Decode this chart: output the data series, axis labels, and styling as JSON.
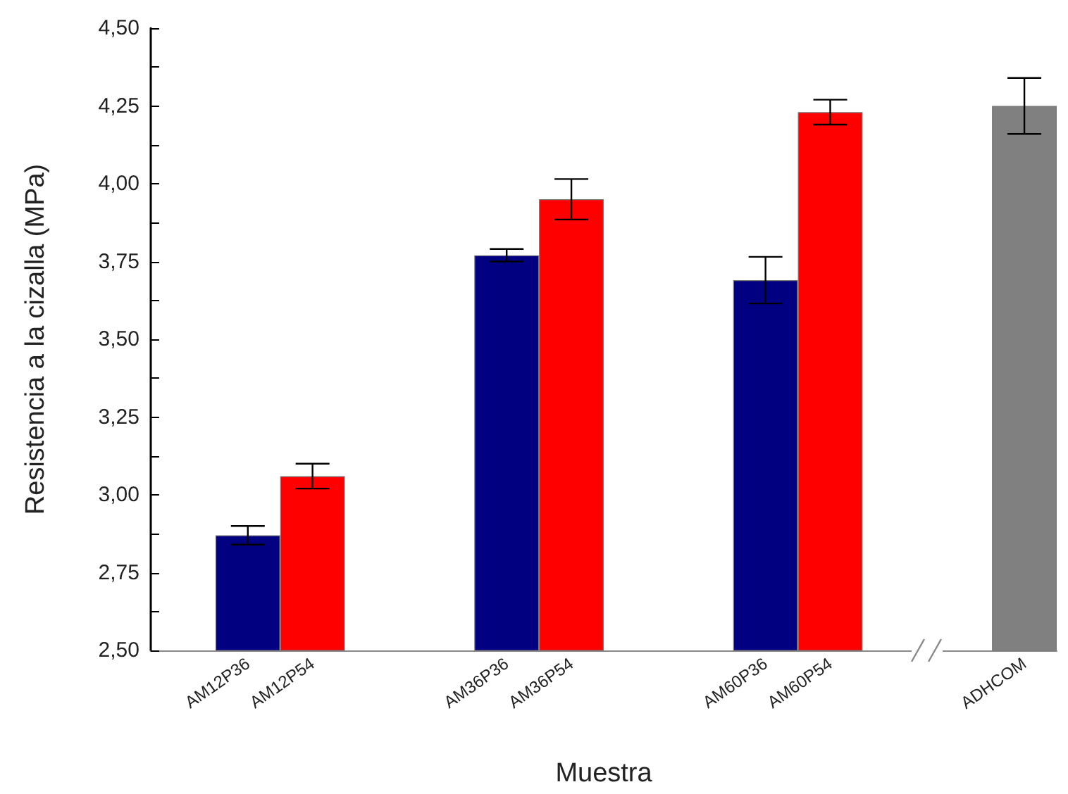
{
  "chart_data": {
    "type": "bar",
    "xlabel": "Muestra",
    "ylabel": "Resistencia a la cizalla (MPa)",
    "categories": [
      null,
      "AM12P36",
      "AM12P54",
      null,
      null,
      "AM36P36",
      "AM36P54",
      null,
      null,
      "AM60P36",
      "AM60P54",
      null,
      null,
      "ADHCOM"
    ],
    "values": [
      null,
      2.87,
      3.06,
      null,
      null,
      3.77,
      3.95,
      null,
      null,
      3.69,
      4.23,
      null,
      null,
      4.25
    ],
    "errors": [
      null,
      0.03,
      0.04,
      null,
      null,
      0.02,
      0.065,
      null,
      null,
      0.075,
      0.04,
      null,
      null,
      0.09
    ],
    "colors": [
      "#000080",
      "#000080",
      "#ff0000",
      "#000080",
      "#000080",
      "#000080",
      "#ff0000",
      "#000080",
      "#000080",
      "#000080",
      "#ff0000",
      "#000080",
      "#000080",
      "#808080"
    ],
    "ylim": [
      2.5,
      4.5
    ],
    "yticks": [
      {
        "value": 2.5,
        "label": "2,50"
      },
      {
        "value": 2.625,
        "label": null
      },
      {
        "value": 2.75,
        "label": "2,75"
      },
      {
        "value": 2.875,
        "label": null
      },
      {
        "value": 3.0,
        "label": "3,00"
      },
      {
        "value": 3.125,
        "label": null
      },
      {
        "value": 3.25,
        "label": "3,25"
      },
      {
        "value": 3.375,
        "label": null
      },
      {
        "value": 3.5,
        "label": "3,50"
      },
      {
        "value": 3.625,
        "label": null
      },
      {
        "value": 3.75,
        "label": "3,75"
      },
      {
        "value": 3.875,
        "label": null
      },
      {
        "value": 4.0,
        "label": "4,00"
      },
      {
        "value": 4.125,
        "label": null
      },
      {
        "value": 4.25,
        "label": "4,25"
      },
      {
        "value": 4.375,
        "label": null
      },
      {
        "value": 4.5,
        "label": "4,50"
      }
    ],
    "tick_labels": true
  }
}
